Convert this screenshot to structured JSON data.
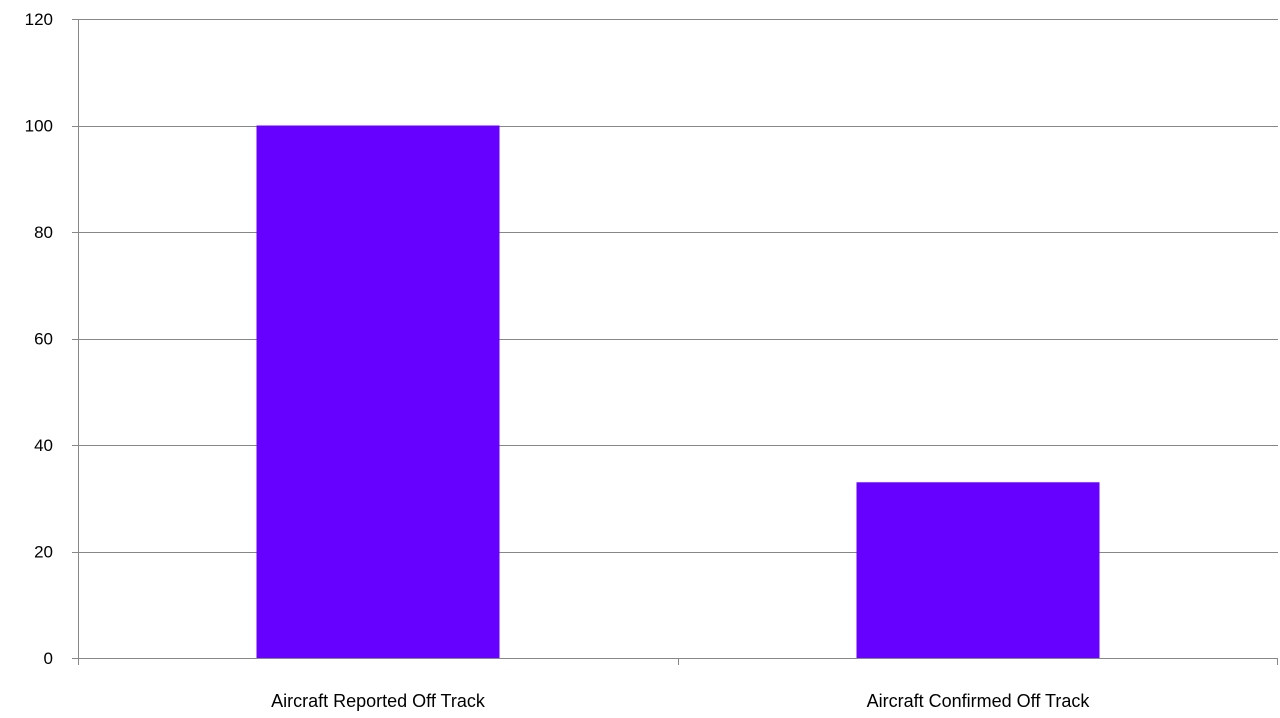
{
  "chart_data": {
    "type": "bar",
    "categories": [
      "Aircraft Reported Off Track",
      "Aircraft Confirmed Off Track"
    ],
    "values": [
      100,
      33
    ],
    "ylim": [
      0,
      120
    ],
    "yticks": [
      0,
      20,
      40,
      60,
      80,
      100,
      120
    ],
    "grid": true,
    "legend": "none",
    "bar_color": "#6600FF",
    "grid_color": "#878787",
    "axis_color": "#878787"
  }
}
